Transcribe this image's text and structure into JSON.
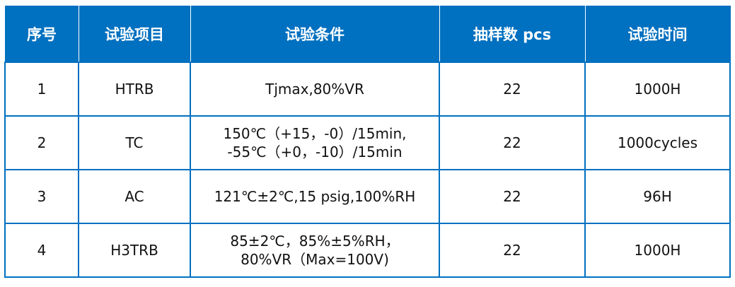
{
  "header": [
    "序号",
    "试验项目",
    "试验条件",
    "抽样数 pcs",
    "试验时间"
  ],
  "rows": [
    [
      "1",
      "HTRB",
      "Tjmax,80%VR",
      "22",
      "1000H"
    ],
    [
      "2",
      "TC",
      "150℃（+15，-0）/15min, -55℃（+0，-10）/15min",
      "22",
      "1000cycles"
    ],
    [
      "3",
      "AC",
      "121℃±2℃,15 psig,100%RH",
      "22",
      "96H"
    ],
    [
      "4",
      "H3TRB",
      "85±2℃，85%±5%RH，80%VR（Max=100V)",
      "22",
      "1000H"
    ]
  ],
  "colors": {
    "header_bg": "#0070c0",
    "border": "#0070c0"
  }
}
